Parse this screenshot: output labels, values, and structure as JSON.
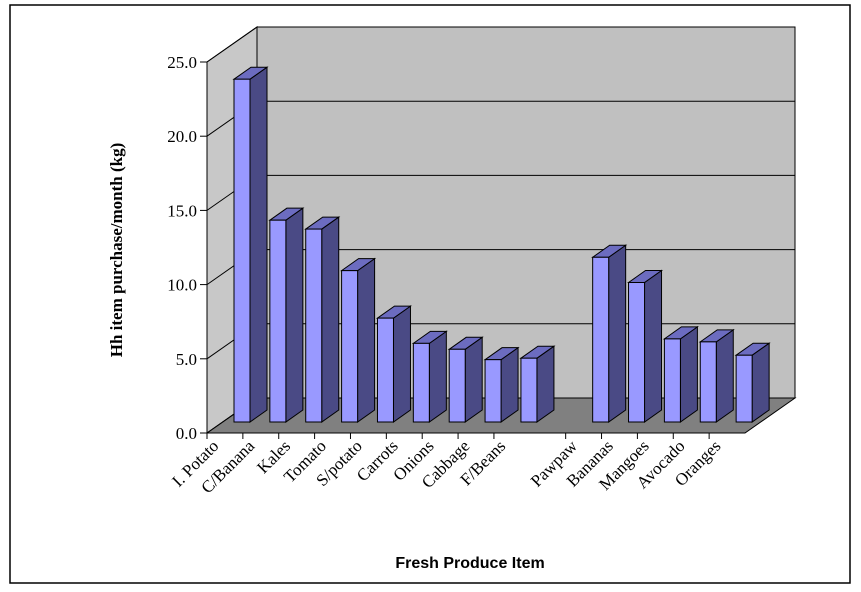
{
  "chart_data": {
    "type": "bar3d",
    "y_label": "Hh item purchase/month (kg)",
    "x_label": "Fresh Produce Item",
    "categories": [
      "I. Potato",
      "C/Banana",
      "Kales",
      "Tomato",
      "S/potato",
      "Carrots",
      "Onions",
      "Cabbage",
      "F/Beans",
      null,
      "Pawpaw",
      "Bananas",
      "Mangoes",
      "Avocado",
      "Oranges"
    ],
    "values": [
      23.1,
      13.6,
      13.0,
      10.2,
      7.0,
      5.3,
      4.9,
      4.2,
      4.3,
      null,
      11.1,
      9.4,
      5.6,
      5.4,
      4.5
    ],
    "color": "#9999ff",
    "ylim": [
      0,
      25
    ],
    "yticks": [
      {
        "value": 0,
        "label": "0.0"
      },
      {
        "value": 5,
        "label": "5.0"
      },
      {
        "value": 10,
        "label": "10.0"
      },
      {
        "value": 15,
        "label": "15.0"
      },
      {
        "value": 20,
        "label": "20.0"
      },
      {
        "value": 25,
        "label": "25.0"
      }
    ],
    "grid": true
  }
}
